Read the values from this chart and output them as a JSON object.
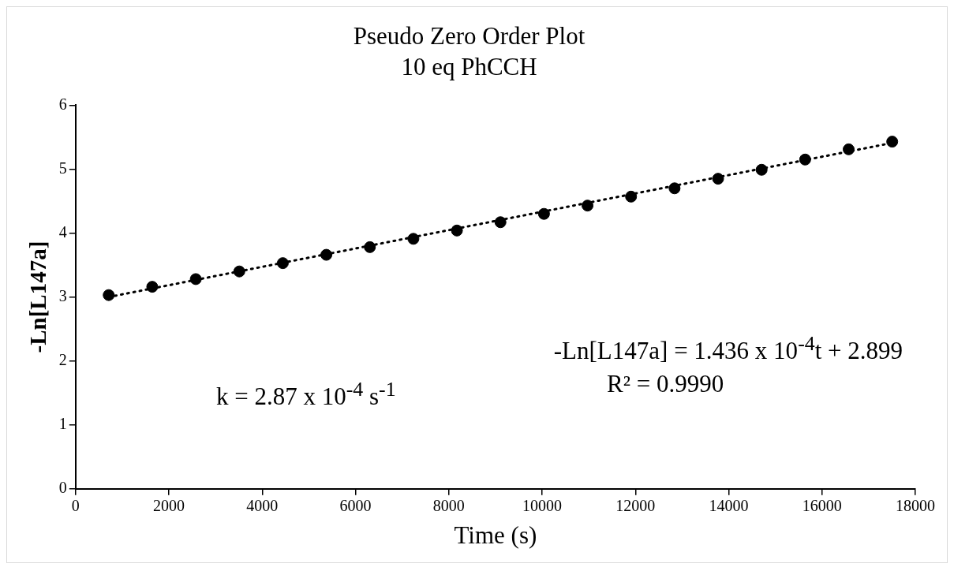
{
  "chart_data": {
    "type": "scatter",
    "title": "Pseudo Zero Order Plot",
    "subtitle": "10 eq PhCCH",
    "xlabel": "Time (s)",
    "ylabel": "-Ln[L147a]",
    "xlim": [
      0,
      18000
    ],
    "xticks": [
      0,
      2000,
      4000,
      6000,
      8000,
      10000,
      12000,
      14000,
      16000,
      18000
    ],
    "ylim": [
      0,
      6
    ],
    "yticks": [
      0,
      1,
      2,
      3,
      4,
      5,
      6
    ],
    "grid": false,
    "legend": false,
    "series": [
      {
        "type": "scatter",
        "color": "#000000",
        "marker": "circle",
        "x": [
          710,
          1643,
          2576,
          3509,
          4442,
          5375,
          6308,
          7241,
          8174,
          9107,
          10040,
          10973,
          11906,
          12839,
          13772,
          14705,
          15638,
          16571,
          17504
        ],
        "values": [
          3.03,
          3.16,
          3.28,
          3.4,
          3.53,
          3.66,
          3.78,
          3.91,
          4.04,
          4.17,
          4.3,
          4.43,
          4.57,
          4.7,
          4.85,
          4.99,
          5.15,
          5.31,
          5.43
        ]
      },
      {
        "type": "line",
        "color": "#000000",
        "marker": "none",
        "line_style": "dotted",
        "x": [
          710,
          17504
        ],
        "values": [
          3.0,
          5.41
        ]
      }
    ],
    "annotations": [
      "-Ln[L147a] = 1.436 x 10$^{-4}$t + 2.899",
      "R² = 0.9990",
      "k = 2.87 x 10$^{-4}$ s$^{-1}$"
    ]
  }
}
